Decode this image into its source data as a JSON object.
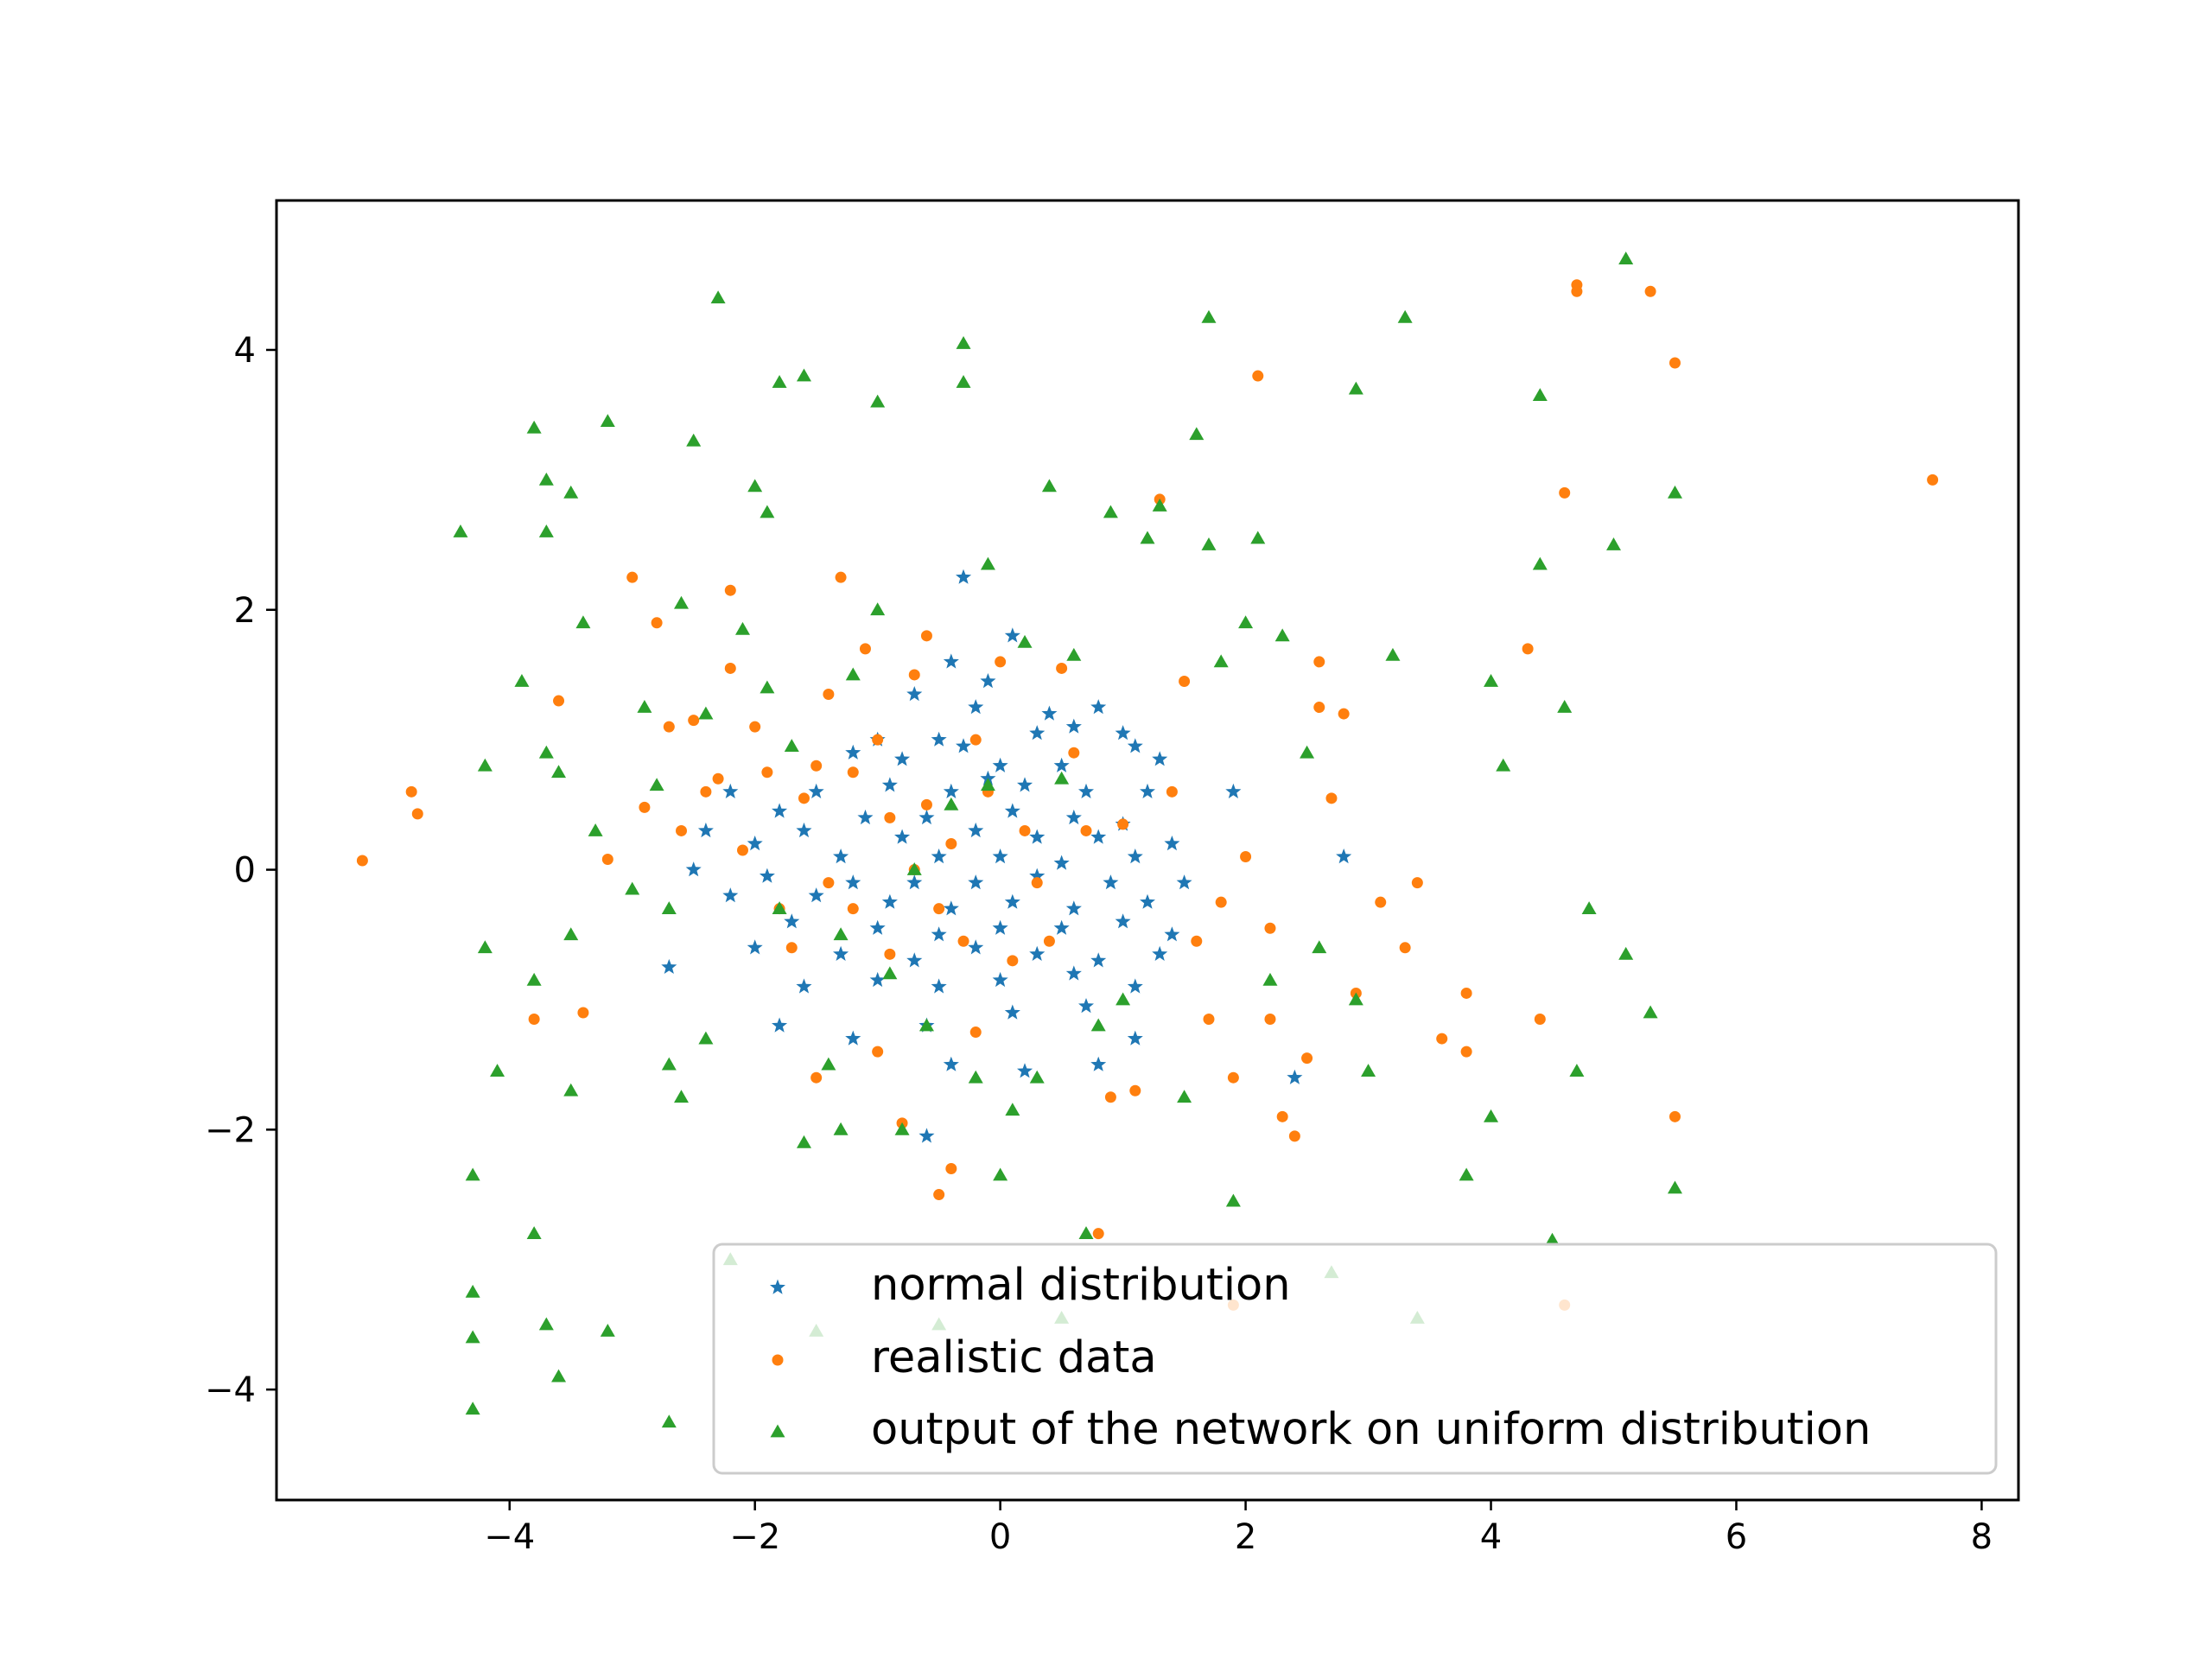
{
  "chart_data": {
    "type": "scatter",
    "title": "",
    "xlabel": "",
    "ylabel": "",
    "xlim": [
      -5.9,
      8.3
    ],
    "ylim": [
      -4.85,
      5.15
    ],
    "xticks": [
      -4,
      -2,
      0,
      2,
      4,
      6,
      8
    ],
    "yticks": [
      -4,
      -2,
      0,
      2,
      4
    ],
    "grid": false,
    "legend_position": "lower-right",
    "series": [
      {
        "name": "normal distribution",
        "marker": "star",
        "color": "#1f77b4",
        "points": [
          [
            -0.3,
            2.25
          ],
          [
            0.1,
            1.8
          ],
          [
            -0.4,
            1.6
          ],
          [
            -0.1,
            1.45
          ],
          [
            -0.7,
            1.35
          ],
          [
            -0.2,
            1.25
          ],
          [
            0.4,
            1.2
          ],
          [
            0.6,
            1.1
          ],
          [
            0.8,
            1.25
          ],
          [
            -1.0,
            1.0
          ],
          [
            -0.5,
            1.0
          ],
          [
            0.3,
            1.05
          ],
          [
            1.0,
            1.05
          ],
          [
            1.1,
            0.95
          ],
          [
            -1.2,
            0.9
          ],
          [
            -0.8,
            0.85
          ],
          [
            -0.3,
            0.95
          ],
          [
            0.0,
            0.8
          ],
          [
            0.5,
            0.8
          ],
          [
            1.3,
            0.85
          ],
          [
            -2.2,
            0.6
          ],
          [
            -1.5,
            0.6
          ],
          [
            -0.9,
            0.65
          ],
          [
            -0.4,
            0.6
          ],
          [
            -0.1,
            0.7
          ],
          [
            0.2,
            0.65
          ],
          [
            0.7,
            0.6
          ],
          [
            1.2,
            0.6
          ],
          [
            1.9,
            0.6
          ],
          [
            -1.8,
            0.45
          ],
          [
            -1.1,
            0.4
          ],
          [
            -0.6,
            0.4
          ],
          [
            0.1,
            0.45
          ],
          [
            0.6,
            0.4
          ],
          [
            1.0,
            0.35
          ],
          [
            -2.4,
            0.3
          ],
          [
            -1.6,
            0.3
          ],
          [
            -0.8,
            0.25
          ],
          [
            -0.2,
            0.3
          ],
          [
            0.3,
            0.25
          ],
          [
            0.8,
            0.25
          ],
          [
            1.4,
            0.2
          ],
          [
            -2.0,
            0.2
          ],
          [
            -1.3,
            0.1
          ],
          [
            -0.5,
            0.1
          ],
          [
            0.0,
            0.1
          ],
          [
            0.5,
            0.05
          ],
          [
            1.1,
            0.1
          ],
          [
            2.8,
            0.1
          ],
          [
            -2.5,
            0.0
          ],
          [
            -1.9,
            -0.05
          ],
          [
            -1.2,
            -0.1
          ],
          [
            -0.7,
            -0.1
          ],
          [
            -0.2,
            -0.1
          ],
          [
            0.3,
            -0.05
          ],
          [
            0.9,
            -0.1
          ],
          [
            1.5,
            -0.1
          ],
          [
            -2.2,
            -0.2
          ],
          [
            -1.5,
            -0.2
          ],
          [
            -0.9,
            -0.25
          ],
          [
            -0.4,
            -0.3
          ],
          [
            0.1,
            -0.25
          ],
          [
            0.6,
            -0.3
          ],
          [
            1.2,
            -0.25
          ],
          [
            -1.7,
            -0.4
          ],
          [
            -1.0,
            -0.45
          ],
          [
            -0.5,
            -0.5
          ],
          [
            0.0,
            -0.45
          ],
          [
            0.5,
            -0.45
          ],
          [
            1.0,
            -0.4
          ],
          [
            1.4,
            -0.5
          ],
          [
            -2.0,
            -0.6
          ],
          [
            -1.3,
            -0.65
          ],
          [
            -0.7,
            -0.7
          ],
          [
            -0.2,
            -0.6
          ],
          [
            0.3,
            -0.65
          ],
          [
            0.8,
            -0.7
          ],
          [
            1.3,
            -0.65
          ],
          [
            -1.6,
            -0.9
          ],
          [
            -1.0,
            -0.85
          ],
          [
            -0.5,
            -0.9
          ],
          [
            0.0,
            -0.85
          ],
          [
            0.6,
            -0.8
          ],
          [
            1.1,
            -0.9
          ],
          [
            -1.8,
            -1.2
          ],
          [
            -1.2,
            -1.3
          ],
          [
            -0.6,
            -1.2
          ],
          [
            0.1,
            -1.1
          ],
          [
            0.7,
            -1.05
          ],
          [
            1.1,
            -1.3
          ],
          [
            -0.4,
            -1.5
          ],
          [
            0.2,
            -1.55
          ],
          [
            0.8,
            -1.5
          ],
          [
            -0.6,
            -2.05
          ],
          [
            2.4,
            -1.6
          ],
          [
            -2.7,
            -0.75
          ]
        ]
      },
      {
        "name": "realistic data",
        "marker": "circle",
        "color": "#ff7f0e",
        "points": [
          [
            -5.2,
            0.07
          ],
          [
            -4.8,
            0.6
          ],
          [
            -4.75,
            0.43
          ],
          [
            -3.8,
            -1.15
          ],
          [
            -3.6,
            1.3
          ],
          [
            -3.4,
            -1.1
          ],
          [
            -3.2,
            0.08
          ],
          [
            -3.0,
            2.25
          ],
          [
            -2.9,
            0.48
          ],
          [
            -2.8,
            1.9
          ],
          [
            -2.7,
            1.1
          ],
          [
            -2.6,
            0.3
          ],
          [
            -2.5,
            1.15
          ],
          [
            -2.4,
            0.6
          ],
          [
            -2.3,
            0.7
          ],
          [
            -2.2,
            1.55
          ],
          [
            -2.2,
            2.15
          ],
          [
            -2.1,
            0.15
          ],
          [
            -2.0,
            1.1
          ],
          [
            -1.9,
            0.75
          ],
          [
            -1.8,
            -0.3
          ],
          [
            -1.7,
            -0.6
          ],
          [
            -1.6,
            0.55
          ],
          [
            -1.5,
            0.8
          ],
          [
            -1.5,
            -1.6
          ],
          [
            -1.4,
            -0.1
          ],
          [
            -1.4,
            1.35
          ],
          [
            -1.3,
            2.25
          ],
          [
            -1.2,
            0.75
          ],
          [
            -1.2,
            -0.3
          ],
          [
            -1.1,
            1.7
          ],
          [
            -1.0,
            1.0
          ],
          [
            -1.0,
            -1.4
          ],
          [
            -0.9,
            0.4
          ],
          [
            -0.9,
            -0.65
          ],
          [
            -0.8,
            -1.95
          ],
          [
            -0.7,
            1.5
          ],
          [
            -0.7,
            0.0
          ],
          [
            -0.6,
            1.8
          ],
          [
            -0.6,
            0.5
          ],
          [
            -0.5,
            -0.3
          ],
          [
            -0.5,
            -2.5
          ],
          [
            -0.4,
            -2.3
          ],
          [
            -0.4,
            0.2
          ],
          [
            -0.3,
            -0.55
          ],
          [
            -0.2,
            1.0
          ],
          [
            -0.2,
            -1.25
          ],
          [
            -0.1,
            0.6
          ],
          [
            0.0,
            1.6
          ],
          [
            0.1,
            -0.7
          ],
          [
            0.2,
            0.3
          ],
          [
            0.3,
            -0.1
          ],
          [
            0.4,
            -0.55
          ],
          [
            0.5,
            1.55
          ],
          [
            0.6,
            0.9
          ],
          [
            0.7,
            0.3
          ],
          [
            0.8,
            -2.8
          ],
          [
            0.9,
            -1.75
          ],
          [
            1.0,
            0.35
          ],
          [
            1.1,
            -1.7
          ],
          [
            1.3,
            2.85
          ],
          [
            1.4,
            0.6
          ],
          [
            1.5,
            1.45
          ],
          [
            1.6,
            -0.55
          ],
          [
            1.7,
            -1.15
          ],
          [
            1.8,
            -0.25
          ],
          [
            1.9,
            -1.6
          ],
          [
            1.9,
            -3.35
          ],
          [
            2.0,
            0.1
          ],
          [
            2.1,
            3.8
          ],
          [
            2.2,
            -1.15
          ],
          [
            2.2,
            -0.45
          ],
          [
            2.3,
            -1.9
          ],
          [
            2.4,
            -2.05
          ],
          [
            2.5,
            -1.45
          ],
          [
            2.6,
            1.6
          ],
          [
            2.7,
            0.55
          ],
          [
            2.8,
            1.2
          ],
          [
            2.9,
            -0.95
          ],
          [
            3.1,
            -0.25
          ],
          [
            3.3,
            -0.6
          ],
          [
            3.4,
            -0.1
          ],
          [
            3.6,
            -1.3
          ],
          [
            3.8,
            -1.4
          ],
          [
            3.8,
            -0.95
          ],
          [
            4.3,
            1.7
          ],
          [
            4.4,
            -1.15
          ],
          [
            4.6,
            2.9
          ],
          [
            4.6,
            -3.35
          ],
          [
            4.7,
            4.5
          ],
          [
            4.7,
            4.45
          ],
          [
            5.3,
            4.45
          ],
          [
            5.5,
            3.9
          ],
          [
            5.5,
            -1.9
          ],
          [
            7.6,
            3.0
          ],
          [
            2.6,
            1.25
          ]
        ]
      },
      {
        "name": "output of the network on uniform distribution",
        "marker": "triangle",
        "color": "#2ca02c",
        "points": [
          [
            -4.4,
            2.6
          ],
          [
            -4.3,
            -2.35
          ],
          [
            -4.3,
            -3.25
          ],
          [
            -4.3,
            -3.6
          ],
          [
            -4.3,
            -4.15
          ],
          [
            -4.2,
            -0.6
          ],
          [
            -4.2,
            0.8
          ],
          [
            -4.1,
            -1.55
          ],
          [
            -3.9,
            1.45
          ],
          [
            -3.8,
            -2.8
          ],
          [
            -3.8,
            -0.85
          ],
          [
            -3.8,
            3.4
          ],
          [
            -3.7,
            3.0
          ],
          [
            -3.7,
            2.6
          ],
          [
            -3.7,
            0.9
          ],
          [
            -3.7,
            -3.5
          ],
          [
            -3.6,
            -3.9
          ],
          [
            -3.6,
            0.75
          ],
          [
            -3.5,
            2.9
          ],
          [
            -3.5,
            -1.7
          ],
          [
            -3.5,
            -0.5
          ],
          [
            -3.4,
            1.9
          ],
          [
            -3.3,
            0.3
          ],
          [
            -3.2,
            3.45
          ],
          [
            -3.2,
            -3.55
          ],
          [
            -3.0,
            -0.15
          ],
          [
            -2.9,
            1.25
          ],
          [
            -2.8,
            0.65
          ],
          [
            -2.7,
            -0.3
          ],
          [
            -2.7,
            -1.5
          ],
          [
            -2.7,
            -4.25
          ],
          [
            -2.6,
            2.05
          ],
          [
            -2.6,
            -1.75
          ],
          [
            -2.5,
            3.3
          ],
          [
            -2.4,
            -1.3
          ],
          [
            -2.4,
            1.2
          ],
          [
            -2.3,
            4.4
          ],
          [
            -2.2,
            -3.0
          ],
          [
            -2.1,
            1.85
          ],
          [
            -2.0,
            2.95
          ],
          [
            -1.9,
            1.4
          ],
          [
            -1.9,
            2.75
          ],
          [
            -1.8,
            3.75
          ],
          [
            -1.8,
            -0.3
          ],
          [
            -1.7,
            0.95
          ],
          [
            -1.6,
            3.8
          ],
          [
            -1.6,
            -2.1
          ],
          [
            -1.5,
            -3.55
          ],
          [
            -1.4,
            -1.5
          ],
          [
            -1.3,
            -0.5
          ],
          [
            -1.3,
            -2.0
          ],
          [
            -1.2,
            1.5
          ],
          [
            -1.0,
            2.0
          ],
          [
            -1.0,
            3.6
          ],
          [
            -0.9,
            -0.8
          ],
          [
            -0.8,
            -2.0
          ],
          [
            -0.7,
            0.0
          ],
          [
            -0.6,
            -1.2
          ],
          [
            -0.5,
            -3.5
          ],
          [
            -0.4,
            0.5
          ],
          [
            -0.3,
            4.05
          ],
          [
            -0.3,
            3.75
          ],
          [
            -0.2,
            -1.6
          ],
          [
            -0.1,
            0.65
          ],
          [
            -0.1,
            2.35
          ],
          [
            0.0,
            -2.35
          ],
          [
            0.1,
            -1.85
          ],
          [
            0.2,
            1.75
          ],
          [
            0.3,
            -1.6
          ],
          [
            0.4,
            2.95
          ],
          [
            0.5,
            0.7
          ],
          [
            0.5,
            -3.45
          ],
          [
            0.6,
            1.65
          ],
          [
            0.7,
            -2.8
          ],
          [
            0.8,
            -1.2
          ],
          [
            0.9,
            2.75
          ],
          [
            1.0,
            -1.0
          ],
          [
            1.2,
            2.55
          ],
          [
            1.3,
            2.8
          ],
          [
            1.5,
            -1.75
          ],
          [
            1.6,
            3.35
          ],
          [
            1.7,
            4.25
          ],
          [
            1.7,
            2.5
          ],
          [
            1.8,
            1.6
          ],
          [
            1.9,
            -2.55
          ],
          [
            2.0,
            1.9
          ],
          [
            2.1,
            2.55
          ],
          [
            2.2,
            -0.85
          ],
          [
            2.3,
            1.8
          ],
          [
            2.5,
            0.9
          ],
          [
            2.6,
            -0.6
          ],
          [
            2.7,
            -3.1
          ],
          [
            2.9,
            3.7
          ],
          [
            3.0,
            -1.55
          ],
          [
            3.2,
            1.65
          ],
          [
            3.3,
            4.25
          ],
          [
            3.4,
            -3.45
          ],
          [
            3.8,
            -2.35
          ],
          [
            4.0,
            1.45
          ],
          [
            4.0,
            -1.9
          ],
          [
            4.1,
            0.8
          ],
          [
            4.4,
            2.35
          ],
          [
            4.4,
            3.65
          ],
          [
            4.5,
            -2.85
          ],
          [
            4.6,
            1.25
          ],
          [
            4.7,
            -1.55
          ],
          [
            4.8,
            -0.3
          ],
          [
            5.0,
            2.5
          ],
          [
            5.1,
            4.7
          ],
          [
            5.1,
            -0.65
          ],
          [
            5.3,
            -1.1
          ],
          [
            5.5,
            2.9
          ],
          [
            5.5,
            -2.45
          ],
          [
            2.9,
            -1.0
          ]
        ]
      }
    ]
  }
}
